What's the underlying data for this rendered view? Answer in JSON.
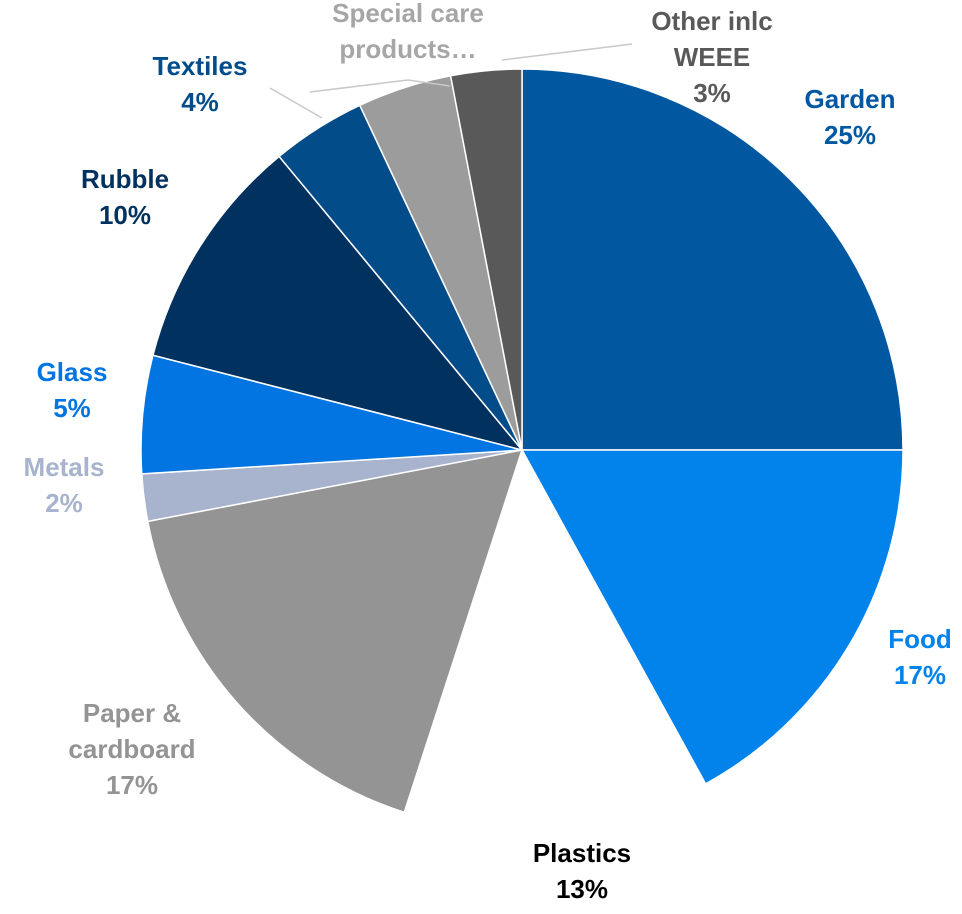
{
  "chart_data": {
    "type": "pie",
    "title": "",
    "slices": [
      {
        "label_lines": [
          "Garden"
        ],
        "percent_label": "25%",
        "value": 25,
        "color": "#0158A0",
        "label_color": "#0158A0"
      },
      {
        "label_lines": [
          "Food"
        ],
        "percent_label": "17%",
        "value": 17,
        "color": "#0283EC",
        "label_color": "#0283EC"
      },
      {
        "label_lines": [
          "Plastics"
        ],
        "percent_label": "13%",
        "value": 13,
        "color": "#FFFFFF",
        "label_color": "#000000"
      },
      {
        "label_lines": [
          "Paper &",
          "cardboard"
        ],
        "percent_label": "17%",
        "value": 17,
        "color": "#949494",
        "label_color": "#949494"
      },
      {
        "label_lines": [
          "Metals"
        ],
        "percent_label": "2%",
        "value": 2,
        "color": "#A8B4CE",
        "label_color": "#A8B4CE"
      },
      {
        "label_lines": [
          "Glass"
        ],
        "percent_label": "5%",
        "value": 5,
        "color": "#0275E2",
        "label_color": "#0275E2"
      },
      {
        "label_lines": [
          "Rubble"
        ],
        "percent_label": "10%",
        "value": 10,
        "color": "#00315F",
        "label_color": "#00315F"
      },
      {
        "label_lines": [
          "Textiles"
        ],
        "percent_label": "4%",
        "value": 4,
        "color": "#024C8A",
        "label_color": "#024C8A"
      },
      {
        "label_lines": [
          "Special care",
          "products…"
        ],
        "percent_label": "",
        "value": 4,
        "color": "#9C9C9C",
        "label_color": "#A6A6A6"
      },
      {
        "label_lines": [
          "Other inlc",
          "WEEE"
        ],
        "percent_label": "3%",
        "value": 3,
        "color": "#595959",
        "label_color": "#595959"
      }
    ]
  }
}
